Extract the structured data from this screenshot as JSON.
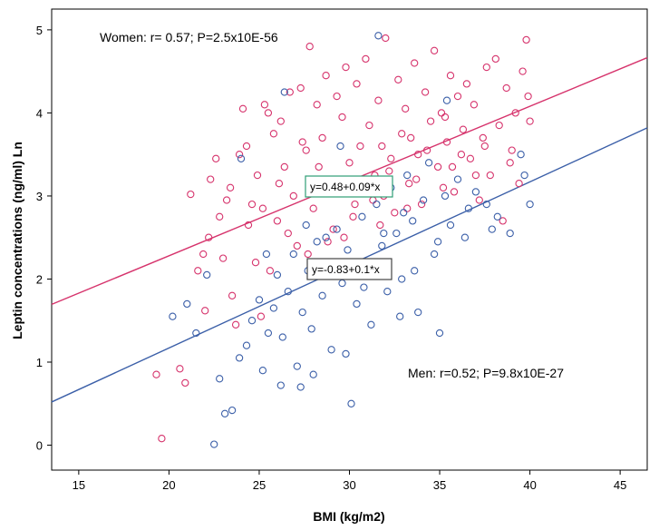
{
  "chart_data": {
    "type": "scatter",
    "title": "",
    "xlabel": "BMI (kg/m2)",
    "ylabel": "Leptin concentrations (ng/ml) Ln",
    "xlim": [
      13.5,
      46.5
    ],
    "ylim": [
      -0.3,
      5.25
    ],
    "x_ticks": [
      15,
      20,
      25,
      30,
      35,
      40,
      45
    ],
    "y_ticks": [
      0,
      1,
      2,
      3,
      4,
      5
    ],
    "grid": false,
    "legend": "none",
    "annotations": {
      "women": "Women: r= 0.57; P=2.5x10E-56",
      "men": "Men: r=0.52; P=9.8x10E-27"
    },
    "series": [
      {
        "name": "Women",
        "color": "#d6336c",
        "fit": {
          "intercept": 0.48,
          "slope": 0.09,
          "label": "y=0.48+0.09*x",
          "x_range": [
            13.5,
            46.5
          ]
        },
        "points": [
          [
            19.6,
            0.08
          ],
          [
            19.3,
            0.85
          ],
          [
            20.6,
            0.92
          ],
          [
            20.9,
            0.75
          ],
          [
            21.2,
            3.02
          ],
          [
            21.6,
            2.1
          ],
          [
            21.9,
            2.3
          ],
          [
            22.0,
            1.62
          ],
          [
            22.2,
            2.5
          ],
          [
            22.3,
            3.2
          ],
          [
            22.6,
            3.45
          ],
          [
            22.8,
            2.75
          ],
          [
            23.0,
            2.25
          ],
          [
            23.2,
            2.95
          ],
          [
            23.4,
            3.1
          ],
          [
            23.7,
            1.45
          ],
          [
            23.9,
            3.5
          ],
          [
            24.1,
            4.05
          ],
          [
            24.3,
            3.6
          ],
          [
            24.4,
            2.65
          ],
          [
            24.6,
            2.9
          ],
          [
            24.9,
            3.25
          ],
          [
            25.1,
            1.55
          ],
          [
            25.3,
            4.1
          ],
          [
            25.5,
            4.0
          ],
          [
            25.8,
            3.75
          ],
          [
            26.0,
            2.7
          ],
          [
            26.2,
            3.9
          ],
          [
            26.4,
            3.35
          ],
          [
            26.7,
            4.25
          ],
          [
            26.9,
            3.0
          ],
          [
            27.1,
            2.4
          ],
          [
            27.3,
            4.3
          ],
          [
            27.6,
            3.55
          ],
          [
            27.8,
            4.8
          ],
          [
            28.0,
            2.85
          ],
          [
            28.2,
            4.1
          ],
          [
            28.5,
            3.7
          ],
          [
            28.7,
            4.45
          ],
          [
            28.9,
            3.2
          ],
          [
            29.1,
            2.6
          ],
          [
            29.3,
            4.2
          ],
          [
            29.6,
            3.95
          ],
          [
            29.8,
            4.55
          ],
          [
            30.0,
            3.4
          ],
          [
            30.2,
            2.75
          ],
          [
            30.4,
            4.35
          ],
          [
            30.7,
            3.1
          ],
          [
            30.9,
            4.65
          ],
          [
            31.1,
            3.85
          ],
          [
            31.3,
            2.95
          ],
          [
            31.6,
            4.15
          ],
          [
            31.8,
            3.6
          ],
          [
            32.0,
            4.9
          ],
          [
            32.2,
            3.3
          ],
          [
            32.5,
            2.8
          ],
          [
            32.7,
            4.4
          ],
          [
            32.9,
            3.75
          ],
          [
            33.1,
            4.05
          ],
          [
            33.3,
            3.15
          ],
          [
            33.6,
            4.6
          ],
          [
            33.8,
            3.5
          ],
          [
            34.0,
            2.9
          ],
          [
            34.2,
            4.25
          ],
          [
            34.5,
            3.9
          ],
          [
            34.7,
            4.75
          ],
          [
            34.9,
            3.35
          ],
          [
            35.1,
            4.0
          ],
          [
            35.4,
            3.65
          ],
          [
            35.6,
            4.45
          ],
          [
            35.8,
            3.05
          ],
          [
            36.0,
            4.2
          ],
          [
            36.3,
            3.8
          ],
          [
            36.5,
            4.35
          ],
          [
            36.7,
            3.45
          ],
          [
            36.9,
            4.1
          ],
          [
            37.2,
            2.95
          ],
          [
            37.4,
            3.7
          ],
          [
            37.6,
            4.55
          ],
          [
            37.8,
            3.25
          ],
          [
            38.1,
            4.65
          ],
          [
            38.3,
            3.85
          ],
          [
            38.5,
            2.7
          ],
          [
            38.7,
            4.3
          ],
          [
            39.0,
            3.55
          ],
          [
            39.2,
            4.0
          ],
          [
            39.4,
            3.15
          ],
          [
            39.6,
            4.5
          ],
          [
            39.8,
            4.88
          ],
          [
            40.0,
            3.9
          ],
          [
            25.2,
            2.85
          ],
          [
            26.1,
            3.15
          ],
          [
            27.4,
            3.65
          ],
          [
            28.3,
            3.35
          ],
          [
            29.4,
            3.05
          ],
          [
            30.6,
            3.6
          ],
          [
            31.4,
            3.25
          ],
          [
            32.3,
            3.45
          ],
          [
            33.4,
            3.7
          ],
          [
            34.3,
            3.55
          ],
          [
            35.3,
            3.95
          ],
          [
            36.2,
            3.5
          ],
          [
            24.8,
            2.2
          ],
          [
            26.6,
            2.55
          ],
          [
            28.8,
            2.45
          ],
          [
            30.3,
            2.9
          ],
          [
            31.9,
            3.0
          ],
          [
            33.7,
            3.2
          ],
          [
            35.7,
            3.35
          ],
          [
            37.5,
            3.6
          ],
          [
            23.5,
            1.8
          ],
          [
            25.6,
            2.1
          ],
          [
            27.7,
            2.3
          ],
          [
            29.7,
            2.5
          ],
          [
            31.7,
            2.65
          ],
          [
            33.2,
            2.85
          ],
          [
            35.2,
            3.1
          ],
          [
            37.0,
            3.25
          ],
          [
            38.9,
            3.4
          ],
          [
            39.9,
            4.2
          ]
        ]
      },
      {
        "name": "Men",
        "color": "#3b5fa8",
        "fit": {
          "intercept": -0.83,
          "slope": 0.1,
          "label": "y=-0.83+0.1*x",
          "x_range": [
            13.5,
            46.5
          ]
        },
        "points": [
          [
            22.5,
            0.01
          ],
          [
            23.1,
            0.38
          ],
          [
            23.5,
            0.42
          ],
          [
            22.8,
            0.8
          ],
          [
            23.9,
            1.05
          ],
          [
            24.3,
            1.2
          ],
          [
            24.6,
            1.5
          ],
          [
            25.0,
            1.75
          ],
          [
            25.2,
            0.9
          ],
          [
            25.5,
            1.35
          ],
          [
            25.8,
            1.65
          ],
          [
            26.0,
            2.05
          ],
          [
            26.3,
            1.3
          ],
          [
            26.6,
            1.85
          ],
          [
            26.9,
            2.3
          ],
          [
            27.1,
            0.95
          ],
          [
            27.4,
            1.6
          ],
          [
            27.7,
            2.1
          ],
          [
            27.9,
            1.4
          ],
          [
            28.2,
            2.45
          ],
          [
            28.5,
            1.8
          ],
          [
            28.8,
            2.2
          ],
          [
            29.0,
            1.15
          ],
          [
            29.3,
            2.6
          ],
          [
            29.6,
            1.95
          ],
          [
            29.9,
            2.35
          ],
          [
            30.1,
            0.5
          ],
          [
            30.4,
            1.7
          ],
          [
            30.7,
            2.75
          ],
          [
            31.0,
            2.15
          ],
          [
            31.2,
            1.45
          ],
          [
            31.5,
            2.9
          ],
          [
            31.8,
            2.4
          ],
          [
            32.1,
            1.85
          ],
          [
            32.3,
            3.1
          ],
          [
            32.6,
            2.55
          ],
          [
            32.9,
            2.0
          ],
          [
            33.2,
            3.25
          ],
          [
            33.5,
            2.7
          ],
          [
            33.8,
            1.6
          ],
          [
            34.1,
            2.95
          ],
          [
            34.4,
            3.4
          ],
          [
            34.7,
            2.3
          ],
          [
            35.0,
            1.35
          ],
          [
            35.3,
            3.0
          ],
          [
            35.6,
            2.65
          ],
          [
            36.0,
            3.2
          ],
          [
            36.4,
            2.5
          ],
          [
            37.0,
            3.05
          ],
          [
            37.6,
            2.9
          ],
          [
            38.2,
            2.75
          ],
          [
            38.9,
            2.55
          ],
          [
            39.5,
            3.5
          ],
          [
            40.0,
            2.9
          ],
          [
            39.7,
            3.25
          ],
          [
            24.0,
            3.45
          ],
          [
            26.4,
            4.25
          ],
          [
            29.5,
            3.6
          ],
          [
            31.6,
            4.93
          ],
          [
            35.4,
            4.15
          ],
          [
            20.2,
            1.55
          ],
          [
            21.0,
            1.7
          ],
          [
            21.5,
            1.35
          ],
          [
            22.1,
            2.05
          ],
          [
            26.2,
            0.72
          ],
          [
            27.3,
            0.7
          ],
          [
            28.0,
            0.85
          ],
          [
            29.8,
            1.1
          ],
          [
            30.8,
            1.9
          ],
          [
            32.8,
            1.55
          ],
          [
            33.6,
            2.1
          ],
          [
            34.9,
            2.45
          ],
          [
            36.6,
            2.85
          ],
          [
            37.9,
            2.6
          ],
          [
            25.4,
            2.3
          ],
          [
            27.6,
            2.65
          ],
          [
            28.7,
            2.5
          ],
          [
            30.5,
            2.2
          ],
          [
            31.9,
            2.55
          ],
          [
            33.0,
            2.8
          ]
        ]
      }
    ]
  }
}
